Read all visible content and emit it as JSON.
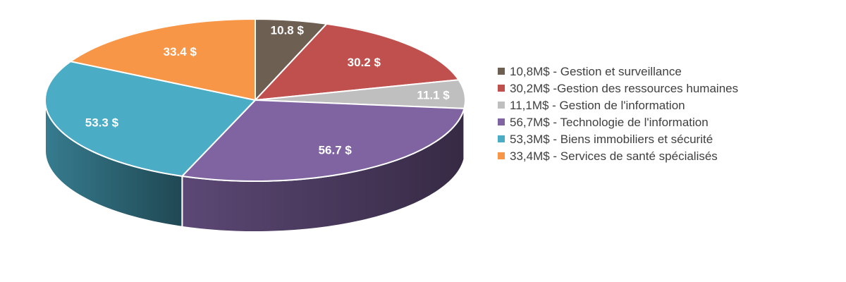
{
  "chart_data": {
    "type": "pie",
    "three_d": true,
    "slices": [
      {
        "value": 10.8,
        "data_label": "10.8 $",
        "legend": "10,8M$ - Gestion et surveillance",
        "color": "#6e5f53"
      },
      {
        "value": 30.2,
        "data_label": "30.2 $",
        "legend": "30,2M$ -Gestion des ressources humaines",
        "color": "#c0504d"
      },
      {
        "value": 11.1,
        "data_label": "11.1 $",
        "legend": "11,1M$ - Gestion de l'information",
        "color": "#bfbfbf"
      },
      {
        "value": 56.7,
        "data_label": "56.7 $",
        "legend": "56,7M$ - Technologie de l'information",
        "color": "#8064a2"
      },
      {
        "value": 53.3,
        "data_label": "53.3 $",
        "legend": "53,3M$ - Biens immobiliers et sécurité",
        "color": "#4bacc6"
      },
      {
        "value": 33.4,
        "data_label": "33.4 $",
        "legend": "33,4M$ - Services de santé spécialisés",
        "color": "#f79646"
      }
    ],
    "legend_position": "right"
  }
}
